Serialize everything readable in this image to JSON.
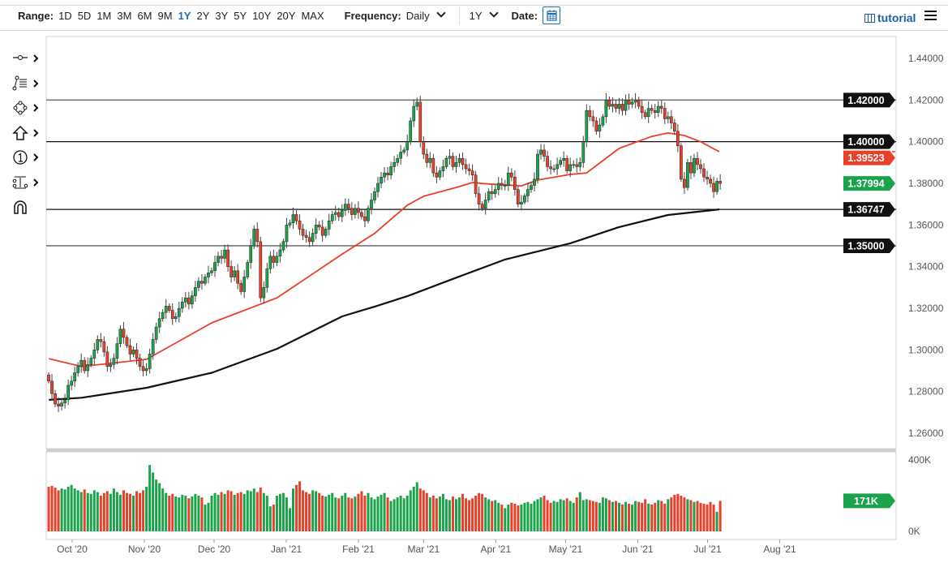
{
  "toolbar": {
    "range_label": "Range:",
    "ranges": [
      "1D",
      "5D",
      "1M",
      "3M",
      "6M",
      "9M",
      "1Y",
      "2Y",
      "3Y",
      "5Y",
      "10Y",
      "20Y",
      "MAX"
    ],
    "active_range": "1Y",
    "frequency_label": "Frequency:",
    "frequency_value": "Daily",
    "period_value": "1Y",
    "date_label": "Date:",
    "tutorial_label": "tutorial"
  },
  "tools": [
    "line-tool-icon",
    "fibonacci-tool-icon",
    "shape-tool-icon",
    "arrow-tool-icon",
    "annotation-number-icon",
    "measure-tool-icon",
    "magnet-icon"
  ],
  "colors": {
    "up": "#1aa34a",
    "down": "#e8402a",
    "ma_fast": "#e8402a",
    "ma_slow": "#111111",
    "level": "#111111"
  },
  "chart_data": {
    "type": "candlestick",
    "ylim": [
      1.26,
      1.44
    ],
    "y_ticks": [
      "1.26000",
      "1.28000",
      "1.30000",
      "1.32000",
      "1.34000",
      "1.36000",
      "1.38000",
      "1.40000",
      "1.42000",
      "1.44000"
    ],
    "x_ticks": [
      {
        "label": "Oct '20",
        "date": "2020-10-01"
      },
      {
        "label": "Nov '20",
        "date": "2020-11-01"
      },
      {
        "label": "Dec '20",
        "date": "2020-12-01"
      },
      {
        "label": "Jan '21",
        "date": "2021-01-01"
      },
      {
        "label": "Feb '21",
        "date": "2021-02-01"
      },
      {
        "label": "Mar '21",
        "date": "2021-03-01"
      },
      {
        "label": "Apr '21",
        "date": "2021-04-01"
      },
      {
        "label": "May '21",
        "date": "2021-05-01"
      },
      {
        "label": "Jun '21",
        "date": "2021-06-01"
      },
      {
        "label": "Jul '21",
        "date": "2021-07-01"
      },
      {
        "label": "Aug '21",
        "date": "2021-08-01"
      }
    ],
    "close": [
      1.285,
      1.279,
      1.274,
      1.273,
      1.2745,
      1.276,
      1.283,
      1.285,
      1.289,
      1.292,
      1.295,
      1.29,
      1.293,
      1.296,
      1.3,
      1.305,
      1.304,
      1.299,
      1.292,
      1.293,
      1.296,
      1.303,
      1.31,
      1.306,
      1.302,
      1.298,
      1.3,
      1.296,
      1.292,
      1.29,
      1.291,
      1.298,
      1.305,
      1.311,
      1.315,
      1.318,
      1.321,
      1.319,
      1.315,
      1.316,
      1.32,
      1.323,
      1.325,
      1.322,
      1.326,
      1.33,
      1.333,
      1.332,
      1.335,
      1.337,
      1.338,
      1.342,
      1.345,
      1.344,
      1.348,
      1.34,
      1.335,
      1.338,
      1.332,
      1.328,
      1.335,
      1.342,
      1.35,
      1.358,
      1.352,
      1.325,
      1.33,
      1.339,
      1.345,
      1.342,
      1.345,
      1.348,
      1.352,
      1.36,
      1.361,
      1.365,
      1.362,
      1.358,
      1.355,
      1.354,
      1.352,
      1.356,
      1.36,
      1.359,
      1.355,
      1.358,
      1.362,
      1.365,
      1.366,
      1.364,
      1.367,
      1.37,
      1.368,
      1.365,
      1.368,
      1.366,
      1.364,
      1.362,
      1.368,
      1.372,
      1.376,
      1.38,
      1.383,
      1.385,
      1.384,
      1.388,
      1.39,
      1.392,
      1.395,
      1.396,
      1.4,
      1.41,
      1.417,
      1.419,
      1.4,
      1.394,
      1.39,
      1.392,
      1.385,
      1.383,
      1.386,
      1.388,
      1.392,
      1.393,
      1.388,
      1.39,
      1.392,
      1.389,
      1.387,
      1.386,
      1.384,
      1.375,
      1.37,
      1.368,
      1.372,
      1.376,
      1.375,
      1.377,
      1.38,
      1.379,
      1.379,
      1.385,
      1.383,
      1.377,
      1.37,
      1.371,
      1.374,
      1.377,
      1.379,
      1.382,
      1.394,
      1.396,
      1.393,
      1.388,
      1.387,
      1.387,
      1.389,
      1.391,
      1.392,
      1.386,
      1.389,
      1.389,
      1.388,
      1.39,
      1.4,
      1.415,
      1.412,
      1.41,
      1.405,
      1.408,
      1.412,
      1.42,
      1.417,
      1.418,
      1.416,
      1.418,
      1.415,
      1.42,
      1.418,
      1.419,
      1.42,
      1.417,
      1.414,
      1.412,
      1.416,
      1.415,
      1.414,
      1.417,
      1.416,
      1.411,
      1.412,
      1.409,
      1.405,
      1.398,
      1.382,
      1.378,
      1.39,
      1.385,
      1.392,
      1.389,
      1.387,
      1.383,
      1.382,
      1.38,
      1.376,
      1.381,
      1.37994
    ],
    "volume_k": [
      250,
      255,
      245,
      230,
      240,
      235,
      250,
      260,
      240,
      230,
      220,
      235,
      215,
      210,
      230,
      220,
      200,
      215,
      225,
      210,
      240,
      220,
      205,
      230,
      215,
      210,
      200,
      225,
      215,
      230,
      250,
      372,
      330,
      290,
      270,
      240,
      215,
      200,
      210,
      195,
      190,
      205,
      200,
      185,
      195,
      210,
      200,
      190,
      150,
      160,
      200,
      215,
      205,
      220,
      210,
      230,
      225,
      205,
      215,
      220,
      210,
      230,
      225,
      240,
      220,
      245,
      215,
      200,
      140,
      150,
      200,
      210,
      215,
      190,
      130,
      240,
      260,
      280,
      230,
      220,
      210,
      230,
      225,
      215,
      200,
      195,
      205,
      215,
      190,
      185,
      200,
      215,
      190,
      185,
      195,
      210,
      225,
      200,
      215,
      190,
      180,
      195,
      205,
      215,
      190,
      170,
      180,
      190,
      200,
      185,
      200,
      230,
      250,
      275,
      240,
      230,
      215,
      190,
      200,
      185,
      195,
      210,
      180,
      175,
      195,
      180,
      190,
      210,
      185,
      175,
      185,
      200,
      215,
      210,
      190,
      180,
      170,
      175,
      160,
      150,
      130,
      150,
      160,
      155,
      145,
      150,
      160,
      165,
      155,
      170,
      180,
      190,
      200,
      175,
      160,
      170,
      165,
      180,
      175,
      185,
      170,
      160,
      190,
      220,
      175,
      180,
      175,
      170,
      165,
      160,
      190,
      185,
      175,
      165,
      170,
      160,
      150,
      165,
      155,
      150,
      170,
      165,
      160,
      180,
      155,
      150,
      160,
      175,
      170,
      155,
      180,
      190,
      205,
      210,
      200,
      190,
      180,
      175,
      165,
      170,
      160,
      155,
      150,
      165,
      150,
      110,
      171
    ],
    "volume_ticks": [
      "0K",
      "400K"
    ],
    "volume_max_k": 400,
    "ma_fast": [
      [
        "2020-09-21",
        1.2958
      ],
      [
        "2020-10-05",
        1.292
      ],
      [
        "2020-11-02",
        1.2955
      ],
      [
        "2020-11-30",
        1.313
      ],
      [
        "2020-12-28",
        1.325
      ],
      [
        "2021-01-25",
        1.346
      ],
      [
        "2021-02-08",
        1.356
      ],
      [
        "2021-02-22",
        1.3695
      ],
      [
        "2021-03-01",
        1.3738
      ],
      [
        "2021-03-15",
        1.378
      ],
      [
        "2021-03-22",
        1.3804
      ],
      [
        "2021-03-29",
        1.3797
      ],
      [
        "2021-04-12",
        1.3788
      ],
      [
        "2021-04-19",
        1.3816
      ],
      [
        "2021-05-03",
        1.3843
      ],
      [
        "2021-05-10",
        1.385
      ],
      [
        "2021-05-17",
        1.3909
      ],
      [
        "2021-05-24",
        1.3968
      ],
      [
        "2021-06-07",
        1.4025
      ],
      [
        "2021-06-14",
        1.4042
      ],
      [
        "2021-06-21",
        1.403
      ],
      [
        "2021-06-28",
        1.4
      ],
      [
        "2021-07-06",
        1.3952
      ]
    ],
    "ma_slow": [
      [
        "2020-09-21",
        1.276
      ],
      [
        "2020-10-05",
        1.277
      ],
      [
        "2020-11-02",
        1.2818
      ],
      [
        "2020-11-30",
        1.289
      ],
      [
        "2020-12-28",
        1.3005
      ],
      [
        "2021-01-25",
        1.3161
      ],
      [
        "2021-02-08",
        1.3208
      ],
      [
        "2021-02-22",
        1.3258
      ],
      [
        "2021-03-15",
        1.3347
      ],
      [
        "2021-04-05",
        1.3434
      ],
      [
        "2021-05-03",
        1.3512
      ],
      [
        "2021-05-24",
        1.359
      ],
      [
        "2021-06-14",
        1.3648
      ],
      [
        "2021-07-06",
        1.3675
      ]
    ],
    "levels": [
      {
        "value": 1.42,
        "label": "1.42000",
        "color": "#777777"
      },
      {
        "value": 1.4,
        "label": "1.40000",
        "color": "#111111"
      },
      {
        "value": 1.36747,
        "label": "1.36747",
        "color": "#111111"
      },
      {
        "value": 1.35,
        "label": "1.35000",
        "color": "#777777"
      }
    ],
    "price_tags": [
      {
        "value": 1.39523,
        "label": "1.39523",
        "color": "#e8402a"
      },
      {
        "value": 1.37994,
        "label": "1.37994",
        "color": "#1aa34a"
      }
    ],
    "volume_tag": {
      "value": 171,
      "label": "171K",
      "color": "#1aa34a"
    }
  }
}
